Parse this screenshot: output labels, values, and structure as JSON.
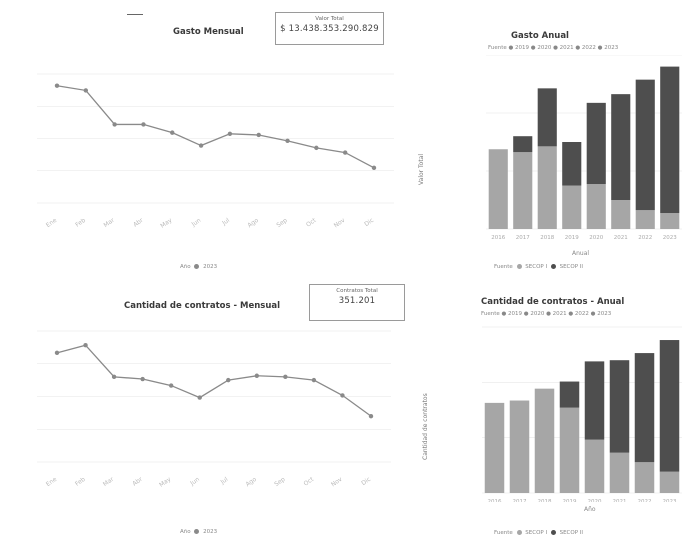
{
  "charts": {
    "monthly_spend": {
      "title": "Gasto Mensual",
      "card_label": "Valor Total",
      "card_value": "$ 13.438.353.290.829",
      "legend_label": "Año",
      "legend_value": "2023"
    },
    "annual_spend": {
      "title": "Gasto Anual",
      "subtitle": "Fuente ● 2019 ● 2020 ● 2021 ● 2022 ● 2023",
      "ylabel": "Valor Total",
      "xlabel": "Anual",
      "legend_label": "Fuente",
      "legend_items": [
        "SECOP I",
        "SECOP II"
      ]
    },
    "monthly_contracts": {
      "title": "Cantidad de contratos - Mensual",
      "card_label": "Contratos Total",
      "card_value": "351.201",
      "legend_label": "Año",
      "legend_value": "2023"
    },
    "annual_contracts": {
      "title": "Cantidad de contratos - Anual",
      "subtitle": "Fuente ● 2019 ● 2020 ● 2021 ● 2022 ● 2023",
      "ylabel": "Cantidad de contratos",
      "xlabel": "Año",
      "legend_label": "Fuente",
      "legend_items": [
        "SECOP I",
        "SECOP II"
      ]
    }
  },
  "colors": {
    "line": "#8a8a8a",
    "secop1": "#a6a6a6",
    "secop2": "#4e4e4e",
    "grid": "#e6e6e6"
  },
  "chart_data": [
    {
      "type": "line",
      "title": "Gasto Mensual",
      "x": [
        "Ene",
        "Feb",
        "Mar",
        "Abr",
        "May",
        "Jun",
        "Jul",
        "Ago",
        "Sep",
        "Oct",
        "Nov",
        "Dic"
      ],
      "series": [
        {
          "name": "2023",
          "values": [
            100,
            96,
            67,
            67,
            60,
            49,
            59,
            58,
            53,
            47,
            43,
            30
          ]
        }
      ],
      "ylim": [
        0,
        110
      ]
    },
    {
      "type": "bar",
      "stacked": true,
      "title": "Gasto Anual",
      "categories": [
        "2016",
        "2017",
        "2018",
        "2019",
        "2020",
        "2021",
        "2022",
        "2023"
      ],
      "series": [
        {
          "name": "SECOP I",
          "values": [
            55,
            53,
            57,
            30,
            31,
            20,
            13,
            11
          ]
        },
        {
          "name": "SECOP II",
          "values": [
            0,
            11,
            40,
            30,
            56,
            73,
            90,
            101
          ]
        }
      ],
      "ylim": [
        0,
        120
      ]
    },
    {
      "type": "line",
      "title": "Cantidad de contratos - Mensual",
      "x": [
        "Ene",
        "Feb",
        "Mar",
        "Abr",
        "May",
        "Jun",
        "Jul",
        "Ago",
        "Sep",
        "Oct",
        "Nov",
        "Dic"
      ],
      "series": [
        {
          "name": "2023",
          "values": [
            100,
            107,
            78,
            76,
            70,
            59,
            75,
            79,
            78,
            75,
            61,
            42
          ]
        }
      ],
      "ylim": [
        0,
        120
      ]
    },
    {
      "type": "bar",
      "stacked": true,
      "title": "Cantidad de contratos - Anual",
      "categories": [
        "2016",
        "2017",
        "2018",
        "2019",
        "2020",
        "2021",
        "2022",
        "2023"
      ],
      "series": [
        {
          "name": "SECOP I",
          "values": [
            76,
            78,
            88,
            72,
            45,
            34,
            26,
            18
          ]
        },
        {
          "name": "SECOP II",
          "values": [
            0,
            0,
            0,
            22,
            66,
            78,
            92,
            111
          ]
        }
      ],
      "ylim": [
        0,
        140
      ]
    }
  ]
}
